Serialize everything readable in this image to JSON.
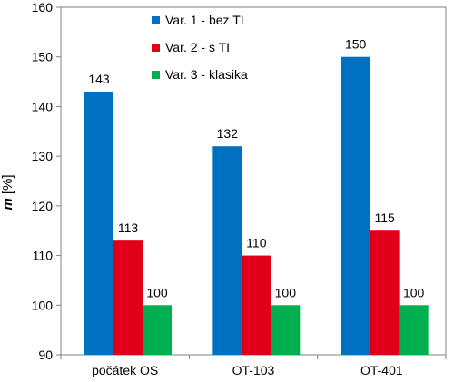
{
  "chart_data": {
    "type": "bar",
    "categories": [
      "počátek OS",
      "OT-103",
      "OT-401"
    ],
    "series": [
      {
        "name": "Var. 1 - bez TI",
        "values": [
          143,
          132,
          150
        ],
        "color": "#0070C0"
      },
      {
        "name": "Var. 2 - s TI",
        "values": [
          113,
          110,
          115
        ],
        "color": "#E1001A"
      },
      {
        "name": "Var. 3 - klasika",
        "values": [
          100,
          100,
          100
        ],
        "color": "#00B050"
      }
    ],
    "ylabel_var": "m",
    "ylabel_unit": "[%]",
    "ylim": [
      90,
      160
    ],
    "yticks": [
      90,
      100,
      110,
      120,
      130,
      140,
      150,
      160
    ],
    "legend_position": "top-center",
    "grid": false
  }
}
